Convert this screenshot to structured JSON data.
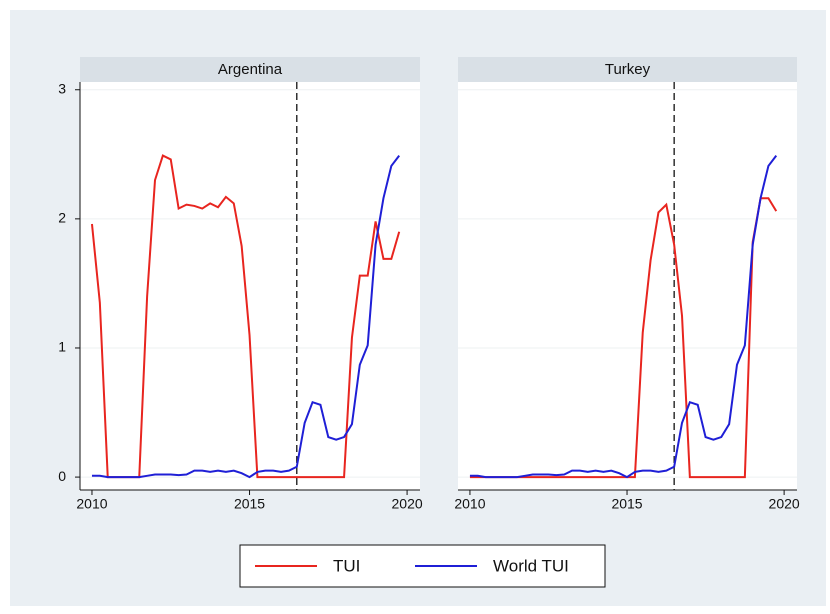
{
  "chart_data": [
    {
      "type": "line",
      "title": "Argentina",
      "x": [
        2010,
        2010.25,
        2010.5,
        2010.75,
        2011,
        2011.25,
        2011.5,
        2011.75,
        2012,
        2012.25,
        2012.5,
        2012.75,
        2013,
        2013.25,
        2013.5,
        2013.75,
        2014,
        2014.25,
        2014.5,
        2014.75,
        2015,
        2015.25,
        2015.5,
        2015.75,
        2016,
        2016.25,
        2016.5,
        2016.75,
        2017,
        2017.25,
        2017.5,
        2017.75,
        2018,
        2018.25,
        2018.5,
        2018.75,
        2019,
        2019.25,
        2019.5,
        2019.75
      ],
      "series": [
        {
          "name": "TUI",
          "color": "#e8251f",
          "values": [
            1.96,
            1.35,
            0,
            0,
            0,
            0,
            0,
            1.4,
            2.3,
            2.49,
            2.46,
            2.08,
            2.11,
            2.1,
            2.08,
            2.12,
            2.09,
            2.17,
            2.12,
            1.79,
            1.1,
            0,
            0,
            0,
            0,
            0,
            0,
            0,
            0,
            0,
            0,
            0,
            0,
            1.08,
            1.56,
            1.56,
            1.98,
            1.69,
            1.69,
            1.9
          ]
        },
        {
          "name": "World TUI",
          "color": "#1f1fd6",
          "values": [
            0.01,
            0.01,
            0,
            0,
            0,
            0,
            0,
            0.01,
            0.02,
            0.02,
            0.02,
            0.015,
            0.02,
            0.05,
            0.05,
            0.04,
            0.05,
            0.04,
            0.05,
            0.03,
            0,
            0.04,
            0.05,
            0.05,
            0.04,
            0.05,
            0.08,
            0.42,
            0.58,
            0.56,
            0.31,
            0.29,
            0.31,
            0.41,
            0.87,
            1.02,
            1.8,
            2.16,
            2.41,
            2.49
          ]
        }
      ],
      "xlim": [
        2009.62,
        2020.41
      ],
      "ylim": [
        -0.1,
        3.06
      ],
      "xticks": [
        2010,
        2015,
        2020
      ],
      "yticks": [
        0,
        1,
        2,
        3
      ],
      "grid": true,
      "vline": 2016.5
    },
    {
      "type": "line",
      "title": "Turkey",
      "x": [
        2010,
        2010.25,
        2010.5,
        2010.75,
        2011,
        2011.25,
        2011.5,
        2011.75,
        2012,
        2012.25,
        2012.5,
        2012.75,
        2013,
        2013.25,
        2013.5,
        2013.75,
        2014,
        2014.25,
        2014.5,
        2014.75,
        2015,
        2015.25,
        2015.5,
        2015.75,
        2016,
        2016.25,
        2016.5,
        2016.75,
        2017,
        2017.25,
        2017.5,
        2017.75,
        2018,
        2018.25,
        2018.5,
        2018.75,
        2019,
        2019.25,
        2019.5,
        2019.75
      ],
      "series": [
        {
          "name": "TUI",
          "color": "#e8251f",
          "values": [
            0,
            0,
            0,
            0,
            0,
            0,
            0,
            0,
            0,
            0,
            0,
            0,
            0,
            0,
            0,
            0,
            0,
            0,
            0,
            0,
            0,
            0,
            1.12,
            1.68,
            2.05,
            2.11,
            1.8,
            1.25,
            0,
            0,
            0,
            0,
            0,
            0,
            0,
            0,
            1.82,
            2.16,
            2.16,
            2.06
          ]
        },
        {
          "name": "World TUI",
          "color": "#1f1fd6",
          "values": [
            0.01,
            0.01,
            0,
            0,
            0,
            0,
            0,
            0.01,
            0.02,
            0.02,
            0.02,
            0.015,
            0.02,
            0.05,
            0.05,
            0.04,
            0.05,
            0.04,
            0.05,
            0.03,
            0,
            0.04,
            0.05,
            0.05,
            0.04,
            0.05,
            0.08,
            0.42,
            0.58,
            0.56,
            0.31,
            0.29,
            0.31,
            0.41,
            0.87,
            1.02,
            1.8,
            2.16,
            2.41,
            2.49
          ]
        }
      ],
      "xlim": [
        2009.62,
        2020.41
      ],
      "ylim": [
        -0.1,
        3.06
      ],
      "xticks": [
        2010,
        2015,
        2020
      ],
      "yticks": [
        0,
        1,
        2,
        3
      ],
      "grid": true,
      "vline": 2016.5
    }
  ]
}
